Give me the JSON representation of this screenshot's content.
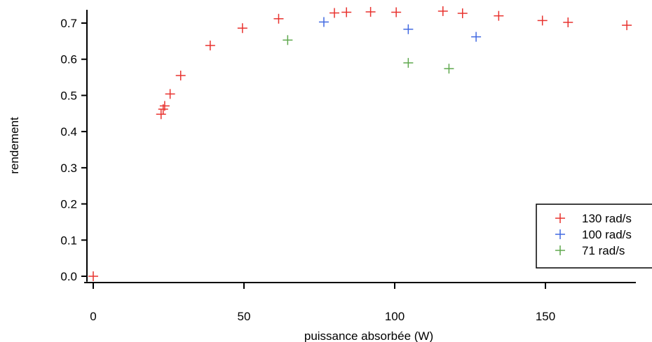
{
  "chart_data": {
    "type": "scatter",
    "title": "",
    "xlabel": "puissance absorbée (W)",
    "ylabel": "rendement",
    "xlim": [
      -3,
      180
    ],
    "ylim": [
      -0.015,
      0.745
    ],
    "xticks": [
      "0",
      "50",
      "100",
      "150"
    ],
    "yticks": [
      "0.0",
      "0.1",
      "0.2",
      "0.3",
      "0.4",
      "0.5",
      "0.6",
      "0.7"
    ],
    "grid": false,
    "legend_position": "bottom-right",
    "series": [
      {
        "name": "130 rad/s",
        "color": "#e8322e",
        "marker": "plus",
        "points": [
          [
            0,
            0.0
          ],
          [
            22.5,
            0.448
          ],
          [
            23.2,
            0.462
          ],
          [
            23.7,
            0.471
          ],
          [
            25.5,
            0.504
          ],
          [
            29,
            0.555
          ],
          [
            38.8,
            0.638
          ],
          [
            49.5,
            0.686
          ],
          [
            61.5,
            0.712
          ],
          [
            80,
            0.728
          ],
          [
            84,
            0.73
          ],
          [
            92,
            0.731
          ],
          [
            100.5,
            0.73
          ],
          [
            116,
            0.733
          ],
          [
            122.5,
            0.727
          ],
          [
            134.5,
            0.72
          ],
          [
            149,
            0.707
          ],
          [
            157.5,
            0.702
          ],
          [
            177,
            0.694
          ]
        ]
      },
      {
        "name": "100 rad/s",
        "color": "#4169e1",
        "marker": "plus",
        "points": [
          [
            76.5,
            0.703
          ],
          [
            104.5,
            0.683
          ],
          [
            127,
            0.662
          ]
        ]
      },
      {
        "name": "71 rad/s",
        "color": "#5fa84e",
        "marker": "plus",
        "points": [
          [
            64.5,
            0.653
          ],
          [
            104.5,
            0.59
          ],
          [
            118,
            0.574
          ]
        ]
      }
    ]
  }
}
